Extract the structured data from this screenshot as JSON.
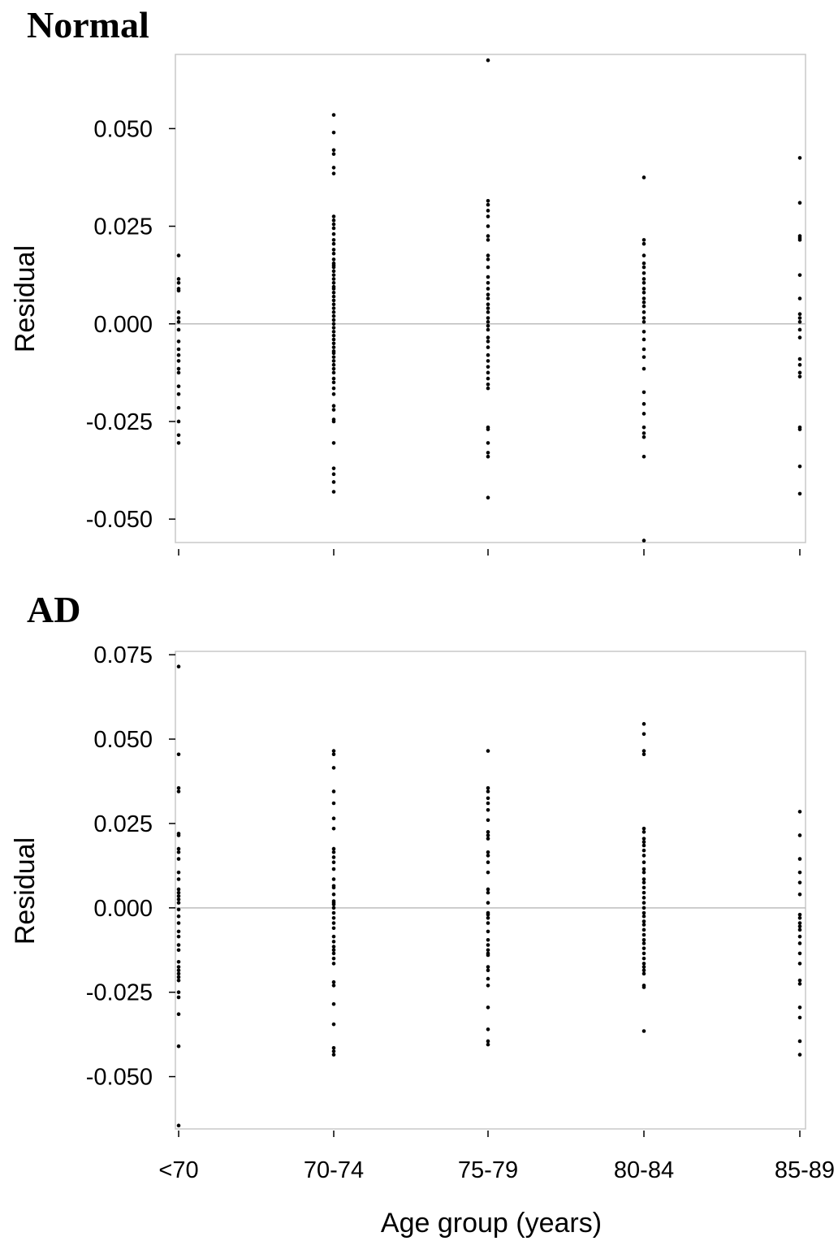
{
  "chart_data": [
    {
      "type": "scatter",
      "title": "Normal",
      "ylabel": "Residual",
      "xlabel": "",
      "categories": [
        "<70",
        "70-74",
        "75-79",
        "80-84",
        "85-89"
      ],
      "ylim": [
        -0.056,
        0.069
      ],
      "yticks": [
        "0.050",
        "0.025",
        "0.000",
        "-0.025",
        "-0.050"
      ],
      "ytick_values": [
        0.05,
        0.025,
        0.0,
        -0.025,
        -0.05
      ],
      "reference_line": 0.0,
      "series": [
        {
          "category": "<70",
          "values": [
            0.0175,
            0.0115,
            0.0105,
            0.009,
            0.0085,
            0.003,
            0.0015,
            0.0005,
            -0.0015,
            -0.0045,
            -0.0065,
            -0.008,
            -0.0095,
            -0.0115,
            -0.0125,
            -0.016,
            -0.018,
            -0.0215,
            -0.025,
            -0.0285,
            -0.0305
          ]
        },
        {
          "category": "70-74",
          "values": [
            0.0535,
            0.049,
            0.0445,
            0.0435,
            0.04,
            0.0385,
            0.0275,
            0.0265,
            0.0255,
            0.0245,
            0.023,
            0.0215,
            0.0205,
            0.019,
            0.018,
            0.0165,
            0.0155,
            0.015,
            0.0145,
            0.0135,
            0.0125,
            0.0115,
            0.0105,
            0.0095,
            0.009,
            0.008,
            0.007,
            0.006,
            0.005,
            0.004,
            0.003,
            0.002,
            0.001,
            0.0,
            -0.001,
            -0.002,
            -0.003,
            -0.004,
            -0.005,
            -0.006,
            -0.007,
            -0.0075,
            -0.0085,
            -0.0095,
            -0.0105,
            -0.0115,
            -0.0125,
            -0.014,
            -0.015,
            -0.0165,
            -0.018,
            -0.021,
            -0.022,
            -0.0245,
            -0.025,
            -0.0305,
            -0.037,
            -0.0385,
            -0.0405,
            -0.043
          ]
        },
        {
          "category": "75-79",
          "values": [
            0.0675,
            0.0315,
            0.0305,
            0.029,
            0.0275,
            0.025,
            0.0225,
            0.0215,
            0.0175,
            0.0165,
            0.0145,
            0.012,
            0.0105,
            0.009,
            0.0075,
            0.0065,
            0.005,
            0.004,
            0.003,
            0.0015,
            0.0005,
            -0.0005,
            -0.0015,
            -0.0035,
            -0.0045,
            -0.006,
            -0.008,
            -0.0095,
            -0.011,
            -0.0125,
            -0.014,
            -0.0155,
            -0.0165,
            -0.0265,
            -0.027,
            -0.0305,
            -0.033,
            -0.034,
            -0.0445
          ]
        },
        {
          "category": "80-84",
          "values": [
            0.0375,
            0.0215,
            0.0205,
            0.0175,
            0.0155,
            0.0145,
            0.013,
            0.0115,
            0.0105,
            0.009,
            0.008,
            0.0065,
            0.0055,
            0.0045,
            0.003,
            0.0015,
            0.0005,
            -0.002,
            -0.004,
            -0.0065,
            -0.0085,
            -0.0115,
            -0.0175,
            -0.0205,
            -0.023,
            -0.0265,
            -0.028,
            -0.029,
            -0.034,
            -0.0555
          ]
        },
        {
          "category": "85-89",
          "values": [
            0.0425,
            0.031,
            0.0225,
            0.022,
            0.0215,
            0.0125,
            0.0065,
            0.0025,
            0.0015,
            0.0005,
            -0.0015,
            -0.0035,
            -0.009,
            -0.0105,
            -0.0125,
            -0.0135,
            -0.0265,
            -0.027,
            -0.0365,
            -0.0435
          ]
        }
      ]
    },
    {
      "type": "scatter",
      "title": "AD",
      "ylabel": "Residual",
      "xlabel": "Age group (years)",
      "categories": [
        "<70",
        "70-74",
        "75-79",
        "80-84",
        "85-89"
      ],
      "ylim": [
        -0.0655,
        0.076
      ],
      "yticks": [
        "0.075",
        "0.050",
        "0.025",
        "0.000",
        "-0.025",
        "-0.050"
      ],
      "ytick_values": [
        0.075,
        0.05,
        0.025,
        0.0,
        -0.025,
        -0.05
      ],
      "reference_line": 0.0,
      "series": [
        {
          "category": "<70",
          "values": [
            0.0715,
            0.0455,
            0.0355,
            0.0345,
            0.022,
            0.0215,
            0.0175,
            0.0165,
            0.0145,
            0.0105,
            0.0085,
            0.0055,
            0.0045,
            0.0035,
            0.0025,
            0.0015,
            -0.0005,
            -0.0025,
            -0.0045,
            -0.007,
            -0.0085,
            -0.011,
            -0.0125,
            -0.016,
            -0.0175,
            -0.0185,
            -0.0195,
            -0.0205,
            -0.0215,
            -0.025,
            -0.0265,
            -0.0315,
            -0.041,
            -0.0645
          ]
        },
        {
          "category": "70-74",
          "values": [
            0.0465,
            0.0455,
            0.0415,
            0.0345,
            0.031,
            0.0265,
            0.0235,
            0.0175,
            0.0165,
            0.015,
            0.0135,
            0.0115,
            0.0085,
            0.0065,
            0.006,
            0.004,
            0.002,
            0.0015,
            0.001,
            0.0,
            -0.0015,
            -0.003,
            -0.0045,
            -0.006,
            -0.0085,
            -0.01,
            -0.0115,
            -0.0125,
            -0.0135,
            -0.015,
            -0.0165,
            -0.022,
            -0.023,
            -0.0285,
            -0.0345,
            -0.0415,
            -0.0425,
            -0.0435
          ]
        },
        {
          "category": "75-79",
          "values": [
            0.0465,
            0.0355,
            0.0345,
            0.0325,
            0.031,
            0.029,
            0.026,
            0.0225,
            0.0215,
            0.0205,
            0.0165,
            0.0155,
            0.0135,
            0.0105,
            0.0055,
            0.0045,
            0.0015,
            -0.0015,
            -0.002,
            -0.003,
            -0.0045,
            -0.007,
            -0.0095,
            -0.011,
            -0.0125,
            -0.0135,
            -0.014,
            -0.0175,
            -0.0185,
            -0.021,
            -0.023,
            -0.0295,
            -0.036,
            -0.0395,
            -0.0405
          ]
        },
        {
          "category": "80-84",
          "values": [
            0.0545,
            0.0515,
            0.0465,
            0.0455,
            0.0235,
            0.0225,
            0.0205,
            0.0195,
            0.0185,
            0.017,
            0.0155,
            0.0135,
            0.0115,
            0.0105,
            0.0085,
            0.0075,
            0.006,
            0.0045,
            0.003,
            0.0015,
            0.0,
            -0.0015,
            -0.0025,
            -0.004,
            -0.005,
            -0.0065,
            -0.008,
            -0.0095,
            -0.0105,
            -0.012,
            -0.0135,
            -0.015,
            -0.0165,
            -0.0175,
            -0.0185,
            -0.0195,
            -0.023,
            -0.0235,
            -0.0365
          ]
        },
        {
          "category": "85-89",
          "values": [
            0.0285,
            0.0215,
            0.0145,
            0.0105,
            0.0075,
            0.004,
            -0.002,
            -0.003,
            -0.0045,
            -0.0055,
            -0.0065,
            -0.0085,
            -0.0105,
            -0.0135,
            -0.0165,
            -0.0215,
            -0.0225,
            -0.0295,
            -0.0325,
            -0.0395,
            -0.0435
          ]
        }
      ]
    }
  ]
}
